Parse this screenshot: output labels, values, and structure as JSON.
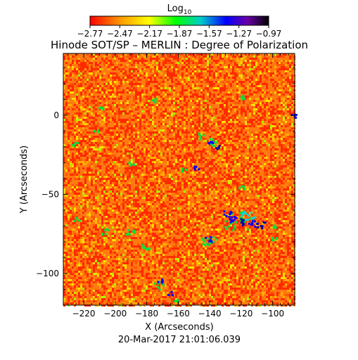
{
  "chart_data": {
    "type": "heatmap",
    "title": "Hinode SOT/SP – MERLIN : Degree of Polarization",
    "colorbar": {
      "title_main": "Log",
      "title_sub": "10",
      "range": [
        -2.77,
        -0.97
      ],
      "tick_labels": [
        "−2.77",
        "−2.47",
        "−2.17",
        "−1.87",
        "−1.57",
        "−1.27",
        "−0.97"
      ],
      "colormap": [
        "#ff0000",
        "#ff8800",
        "#ffff00",
        "#00ff00",
        "#00c8c8",
        "#0000ff",
        "#7700aa",
        "#000000"
      ]
    },
    "xlabel": "X (Arcseconds)",
    "ylabel": "Y (Arcseconds)",
    "xlim": [
      -233,
      -86
    ],
    "ylim": [
      -120,
      39
    ],
    "x_ticks": [
      -220,
      -200,
      -180,
      -160,
      -140,
      -120,
      -100
    ],
    "x_tick_labels": [
      "−220",
      "−200",
      "−180",
      "−160",
      "−140",
      "−120",
      "−100"
    ],
    "y_ticks": [
      0,
      -50,
      -100
    ],
    "y_tick_labels": [
      "0",
      "−50",
      "−100"
    ],
    "grid": false,
    "timestamp": "20-Mar-2017 21:01:06.039"
  }
}
